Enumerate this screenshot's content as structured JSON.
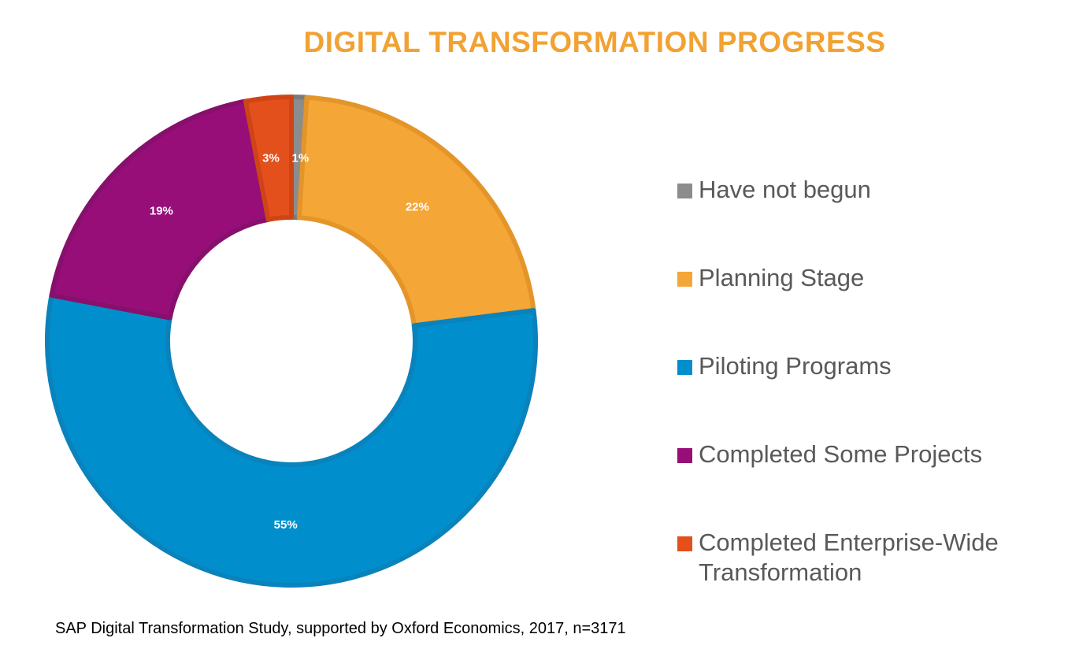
{
  "chart_data": {
    "type": "pie",
    "variant": "donut",
    "title": "DIGITAL TRANSFORMATION PROGRESS",
    "categories": [
      "Have not begun",
      "Planning Stage",
      "Piloting Programs",
      "Completed Some Projects",
      "Completed Enterprise-Wide Transformation"
    ],
    "values": [
      1,
      22,
      55,
      19,
      3
    ],
    "data_labels": [
      "1%",
      "22%",
      "55%",
      "19%",
      "3%"
    ],
    "colors": [
      "#8c8c8c",
      "#f4a636",
      "#008fcc",
      "#970e79",
      "#e4501c"
    ],
    "border_colors": [
      "#7a7a7a",
      "#e4952a",
      "#0a82bb",
      "#86106c",
      "#cf4416"
    ],
    "legend_position": "right",
    "unit": "%"
  },
  "source_note": "SAP Digital Transformation Study, supported by Oxford Economics, 2017, n=3171"
}
